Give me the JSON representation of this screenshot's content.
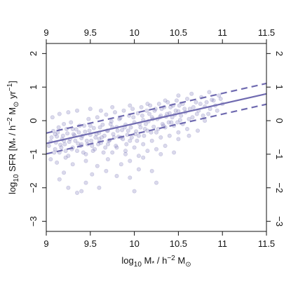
{
  "chart_data": {
    "type": "scatter",
    "xlim": [
      9,
      11.5
    ],
    "ylim": [
      -3.3,
      2.3
    ],
    "x_ticks": [
      9,
      9.5,
      10,
      10.5,
      11,
      11.5
    ],
    "x_tick_labels": [
      "9",
      "9.5",
      "10",
      "10.5",
      "11",
      "11.5"
    ],
    "y_ticks": [
      -3,
      -2,
      -1,
      0,
      1,
      2
    ],
    "y_tick_labels": [
      "−3",
      "−2",
      "−1",
      "0",
      "1",
      "2"
    ],
    "xlabel": {
      "main": "log",
      "sub": "10",
      "rest": " M",
      "sub2": "*",
      "tail": " / h",
      "sup": "−2",
      "unit": " M",
      "unit_sub": "⊙"
    },
    "ylabel": {
      "main": "log",
      "sub": "10",
      "rest": " SFR [M",
      "sub2": "*",
      "tail": " / h",
      "sup": "−2",
      "unit": " M",
      "unit_sub": "⊙",
      "unit2": " yr",
      "sup2": "−1",
      "end": "]"
    },
    "grid": false,
    "colors": {
      "points": "#7a78b8",
      "fit": "#6f6ab0"
    },
    "fit_line": {
      "x": [
        9,
        11.5
      ],
      "y": [
        -0.68,
        0.8
      ]
    },
    "upper_band": {
      "x": [
        9,
        11.5
      ],
      "y": [
        -0.37,
        1.11
      ]
    },
    "lower_band": {
      "x": [
        9,
        11.5
      ],
      "y": [
        -0.99,
        0.49
      ]
    },
    "points": [
      [
        9.05,
        -0.62
      ],
      [
        9.08,
        -0.31
      ],
      [
        9.1,
        -0.85
      ],
      [
        9.12,
        -0.47
      ],
      [
        9.14,
        -0.2
      ],
      [
        9.16,
        -0.72
      ],
      [
        9.18,
        -0.55
      ],
      [
        9.2,
        -0.1
      ],
      [
        9.22,
        -0.9
      ],
      [
        9.24,
        -0.38
      ],
      [
        9.26,
        -0.63
      ],
      [
        9.28,
        -0.05
      ],
      [
        9.3,
        -0.8
      ],
      [
        9.32,
        -0.44
      ],
      [
        9.34,
        -0.26
      ],
      [
        9.36,
        -0.68
      ],
      [
        9.38,
        -0.15
      ],
      [
        9.4,
        -0.52
      ],
      [
        9.42,
        -0.95
      ],
      [
        9.44,
        -0.33
      ],
      [
        9.46,
        -0.6
      ],
      [
        9.48,
        0.05
      ],
      [
        9.5,
        -0.42
      ],
      [
        9.52,
        -0.75
      ],
      [
        9.54,
        -0.22
      ],
      [
        9.56,
        -0.5
      ],
      [
        9.58,
        0.1
      ],
      [
        9.6,
        -0.36
      ],
      [
        9.62,
        -0.66
      ],
      [
        9.64,
        -0.12
      ],
      [
        9.66,
        -0.45
      ],
      [
        9.68,
        0.18
      ],
      [
        9.7,
        -0.3
      ],
      [
        9.72,
        -0.58
      ],
      [
        9.74,
        -0.02
      ],
      [
        9.76,
        -0.4
      ],
      [
        9.78,
        0.25
      ],
      [
        9.8,
        -0.19
      ],
      [
        9.82,
        -0.48
      ],
      [
        9.84,
        0.08
      ],
      [
        9.86,
        -0.28
      ],
      [
        9.88,
        0.3
      ],
      [
        9.9,
        -0.12
      ],
      [
        9.92,
        -0.42
      ],
      [
        9.94,
        0.15
      ],
      [
        9.96,
        -0.2
      ],
      [
        9.98,
        0.35
      ],
      [
        10.0,
        -0.05
      ],
      [
        10.02,
        -0.32
      ],
      [
        10.04,
        0.22
      ],
      [
        10.06,
        -0.1
      ],
      [
        10.08,
        0.4
      ],
      [
        10.1,
        0.02
      ],
      [
        10.12,
        -0.25
      ],
      [
        10.14,
        0.3
      ],
      [
        10.16,
        -0.02
      ],
      [
        10.18,
        0.45
      ],
      [
        10.2,
        0.1
      ],
      [
        10.22,
        -0.18
      ],
      [
        10.24,
        0.35
      ],
      [
        10.26,
        0.05
      ],
      [
        10.28,
        0.5
      ],
      [
        10.3,
        0.15
      ],
      [
        10.32,
        -0.1
      ],
      [
        10.34,
        0.4
      ],
      [
        10.36,
        0.12
      ],
      [
        10.38,
        0.55
      ],
      [
        10.4,
        0.22
      ],
      [
        10.42,
        -0.05
      ],
      [
        10.44,
        0.45
      ],
      [
        10.46,
        0.18
      ],
      [
        10.48,
        0.6
      ],
      [
        10.5,
        0.28
      ],
      [
        10.52,
        0.02
      ],
      [
        10.55,
        0.5
      ],
      [
        10.58,
        0.25
      ],
      [
        10.6,
        0.65
      ],
      [
        10.63,
        0.35
      ],
      [
        10.66,
        0.1
      ],
      [
        10.7,
        0.55
      ],
      [
        10.73,
        0.3
      ],
      [
        10.76,
        0.7
      ],
      [
        10.8,
        0.42
      ],
      [
        10.84,
        0.2
      ],
      [
        10.88,
        0.62
      ],
      [
        10.92,
        0.45
      ],
      [
        10.96,
        0.75
      ],
      [
        11.0,
        0.5
      ],
      [
        9.1,
        -0.4
      ],
      [
        9.15,
        -0.95
      ],
      [
        9.2,
        -0.6
      ],
      [
        9.25,
        -1.05
      ],
      [
        9.3,
        -0.25
      ],
      [
        9.35,
        -0.9
      ],
      [
        9.4,
        -0.7
      ],
      [
        9.45,
        -1.0
      ],
      [
        9.5,
        -0.15
      ],
      [
        9.55,
        -0.85
      ],
      [
        9.6,
        -0.55
      ],
      [
        9.65,
        -0.95
      ],
      [
        9.7,
        -0.7
      ],
      [
        9.75,
        -0.2
      ],
      [
        9.8,
        -0.8
      ],
      [
        9.85,
        -0.5
      ],
      [
        9.9,
        -0.9
      ],
      [
        9.95,
        -0.6
      ],
      [
        10.0,
        -0.8
      ],
      [
        10.05,
        -0.45
      ],
      [
        10.1,
        -0.7
      ],
      [
        10.15,
        -0.3
      ],
      [
        10.2,
        -0.6
      ],
      [
        10.25,
        -0.35
      ],
      [
        10.3,
        -0.5
      ],
      [
        10.35,
        -0.2
      ],
      [
        10.4,
        -0.45
      ],
      [
        10.45,
        -0.15
      ],
      [
        10.5,
        -0.35
      ],
      [
        10.55,
        -0.1
      ],
      [
        10.6,
        -0.25
      ],
      [
        9.03,
        -0.75
      ],
      [
        9.06,
        -0.5
      ],
      [
        9.09,
        -0.95
      ],
      [
        9.11,
        -0.65
      ],
      [
        9.13,
        -0.35
      ],
      [
        9.17,
        -0.8
      ],
      [
        9.19,
        -0.45
      ],
      [
        9.21,
        -0.7
      ],
      [
        9.23,
        -0.25
      ],
      [
        9.27,
        -0.55
      ],
      [
        9.29,
        -0.85
      ],
      [
        9.31,
        -0.4
      ],
      [
        9.33,
        -0.6
      ],
      [
        9.37,
        -0.35
      ],
      [
        9.39,
        -0.75
      ],
      [
        9.41,
        -0.45
      ],
      [
        9.43,
        -0.15
      ],
      [
        9.47,
        -0.7
      ],
      [
        9.49,
        -0.3
      ],
      [
        9.51,
        -0.6
      ],
      [
        9.53,
        -0.9
      ],
      [
        9.57,
        -0.4
      ],
      [
        9.59,
        -0.7
      ],
      [
        9.61,
        -0.2
      ],
      [
        9.63,
        -0.5
      ],
      [
        9.67,
        -0.8
      ],
      [
        9.69,
        -0.3
      ],
      [
        9.71,
        -0.6
      ],
      [
        9.73,
        -0.1
      ],
      [
        9.77,
        -0.5
      ],
      [
        9.79,
        -0.75
      ],
      [
        9.81,
        -0.3
      ],
      [
        9.83,
        0.05
      ],
      [
        9.87,
        -0.55
      ],
      [
        9.89,
        -0.2
      ],
      [
        9.91,
        -0.7
      ],
      [
        9.93,
        -0.3
      ],
      [
        9.97,
        -0.5
      ],
      [
        9.99,
        0.1
      ],
      [
        10.01,
        -0.4
      ],
      [
        10.03,
        -0.6
      ],
      [
        10.07,
        -0.2
      ],
      [
        10.09,
        0.15
      ],
      [
        10.11,
        -0.45
      ],
      [
        10.13,
        -0.1
      ],
      [
        10.17,
        0.2
      ],
      [
        10.19,
        -0.35
      ],
      [
        10.21,
        0.05
      ],
      [
        10.23,
        0.3
      ],
      [
        10.27,
        -0.25
      ],
      [
        10.29,
        0.1
      ],
      [
        10.31,
        0.35
      ],
      [
        10.33,
        -0.15
      ],
      [
        10.37,
        0.2
      ],
      [
        10.39,
        -0.05
      ],
      [
        10.41,
        0.4
      ],
      [
        10.43,
        0.1
      ],
      [
        10.47,
        0.3
      ],
      [
        10.49,
        -0.05
      ],
      [
        10.51,
        0.45
      ],
      [
        10.53,
        0.15
      ],
      [
        10.57,
        0.35
      ],
      [
        10.62,
        0.05
      ],
      [
        10.67,
        0.4
      ],
      [
        10.71,
        0.2
      ],
      [
        10.75,
        0.5
      ],
      [
        10.78,
        0.15
      ],
      [
        10.82,
        0.55
      ],
      [
        10.86,
        0.35
      ],
      [
        10.9,
        0.6
      ],
      [
        10.94,
        0.3
      ],
      [
        10.98,
        0.65
      ],
      [
        9.05,
        -1.15
      ],
      [
        9.12,
        -1.25
      ],
      [
        9.22,
        -1.1
      ],
      [
        9.3,
        -1.3
      ],
      [
        9.45,
        -1.2
      ],
      [
        9.58,
        -1.35
      ],
      [
        9.7,
        -1.15
      ],
      [
        9.85,
        -1.3
      ],
      [
        9.95,
        -1.2
      ],
      [
        10.1,
        -1.1
      ],
      [
        10.3,
        -1.0
      ],
      [
        10.45,
        -0.95
      ],
      [
        9.07,
        0.1
      ],
      [
        9.15,
        0.2
      ],
      [
        9.25,
        0.25
      ],
      [
        9.35,
        0.3
      ],
      [
        9.5,
        0.35
      ],
      [
        9.62,
        0.3
      ],
      [
        9.75,
        0.4
      ],
      [
        9.95,
        0.45
      ],
      [
        10.15,
        0.5
      ],
      [
        10.35,
        0.6
      ],
      [
        10.5,
        0.75
      ],
      [
        10.65,
        0.8
      ],
      [
        10.85,
        0.85
      ],
      [
        9.2,
        -1.55
      ],
      [
        9.25,
        -2.0
      ],
      [
        9.35,
        -2.15
      ],
      [
        9.45,
        -1.85
      ],
      [
        9.6,
        -2.0
      ],
      [
        9.68,
        -1.5
      ],
      [
        9.8,
        -1.65
      ],
      [
        10.05,
        -1.45
      ],
      [
        10.2,
        -1.5
      ],
      [
        10.25,
        -1.85
      ],
      [
        9.95,
        -1.7
      ],
      [
        9.52,
        -1.6
      ],
      [
        9.15,
        -1.75
      ],
      [
        9.4,
        -2.1
      ],
      [
        10.0,
        -2.1
      ],
      [
        9.75,
        -0.95
      ],
      [
        9.9,
        -1.0
      ],
      [
        10.05,
        -1.05
      ],
      [
        10.15,
        -0.9
      ],
      [
        10.25,
        -0.85
      ],
      [
        10.35,
        -0.75
      ],
      [
        10.5,
        -0.55
      ],
      [
        10.62,
        -0.45
      ],
      [
        10.72,
        -0.3
      ],
      [
        10.8,
        0.0
      ]
    ]
  }
}
